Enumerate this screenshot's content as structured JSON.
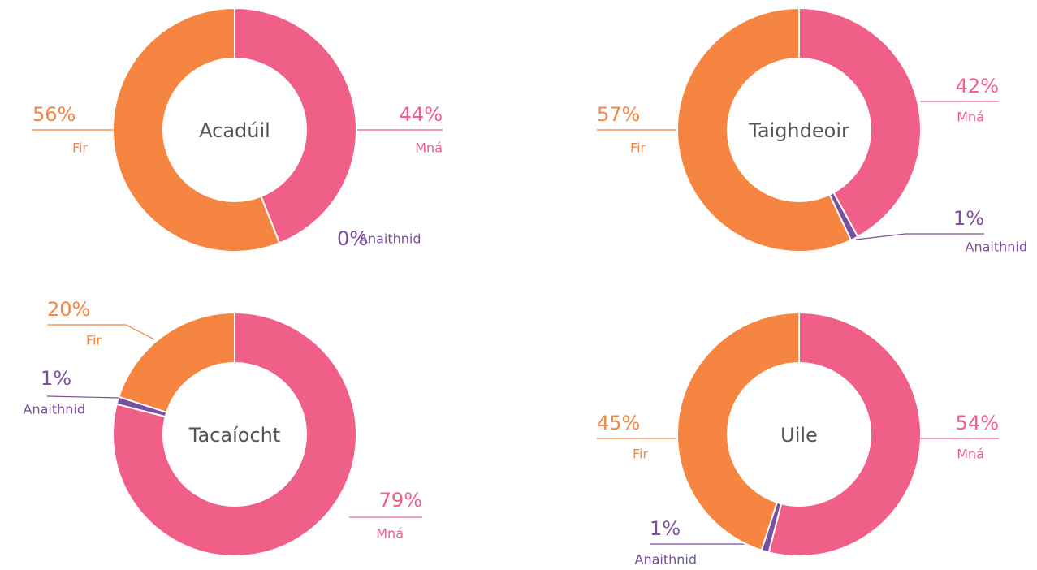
{
  "chart_data": [
    {
      "type": "donut",
      "title": "Acadúil",
      "categories": [
        "Mná",
        "Anaithnid",
        "Fir"
      ],
      "values": [
        44,
        0,
        56
      ],
      "value_labels": [
        "44%",
        "0%",
        "56%"
      ],
      "colors": [
        "#ef5f87",
        "#7b4fa0",
        "#f58540"
      ]
    },
    {
      "type": "donut",
      "title": "Taighdeoir",
      "categories": [
        "Mná",
        "Anaithnid",
        "Fir"
      ],
      "values": [
        42,
        1,
        57
      ],
      "value_labels": [
        "42%",
        "1%",
        "57%"
      ],
      "colors": [
        "#ef5f87",
        "#7b4fa0",
        "#f58540"
      ]
    },
    {
      "type": "donut",
      "title": "Tacaíocht",
      "categories": [
        "Mná",
        "Anaithnid",
        "Fir"
      ],
      "values": [
        79,
        1,
        20
      ],
      "value_labels": [
        "79%",
        "1%",
        "20%"
      ],
      "colors": [
        "#ef5f87",
        "#7b4fa0",
        "#f58540"
      ]
    },
    {
      "type": "donut",
      "title": "Uile",
      "categories": [
        "Mná",
        "Anaithnid",
        "Fir"
      ],
      "values": [
        54,
        1,
        45
      ],
      "value_labels": [
        "54%",
        "1%",
        "45%"
      ],
      "colors": [
        "#ef5f87",
        "#7b4fa0",
        "#f58540"
      ]
    }
  ]
}
